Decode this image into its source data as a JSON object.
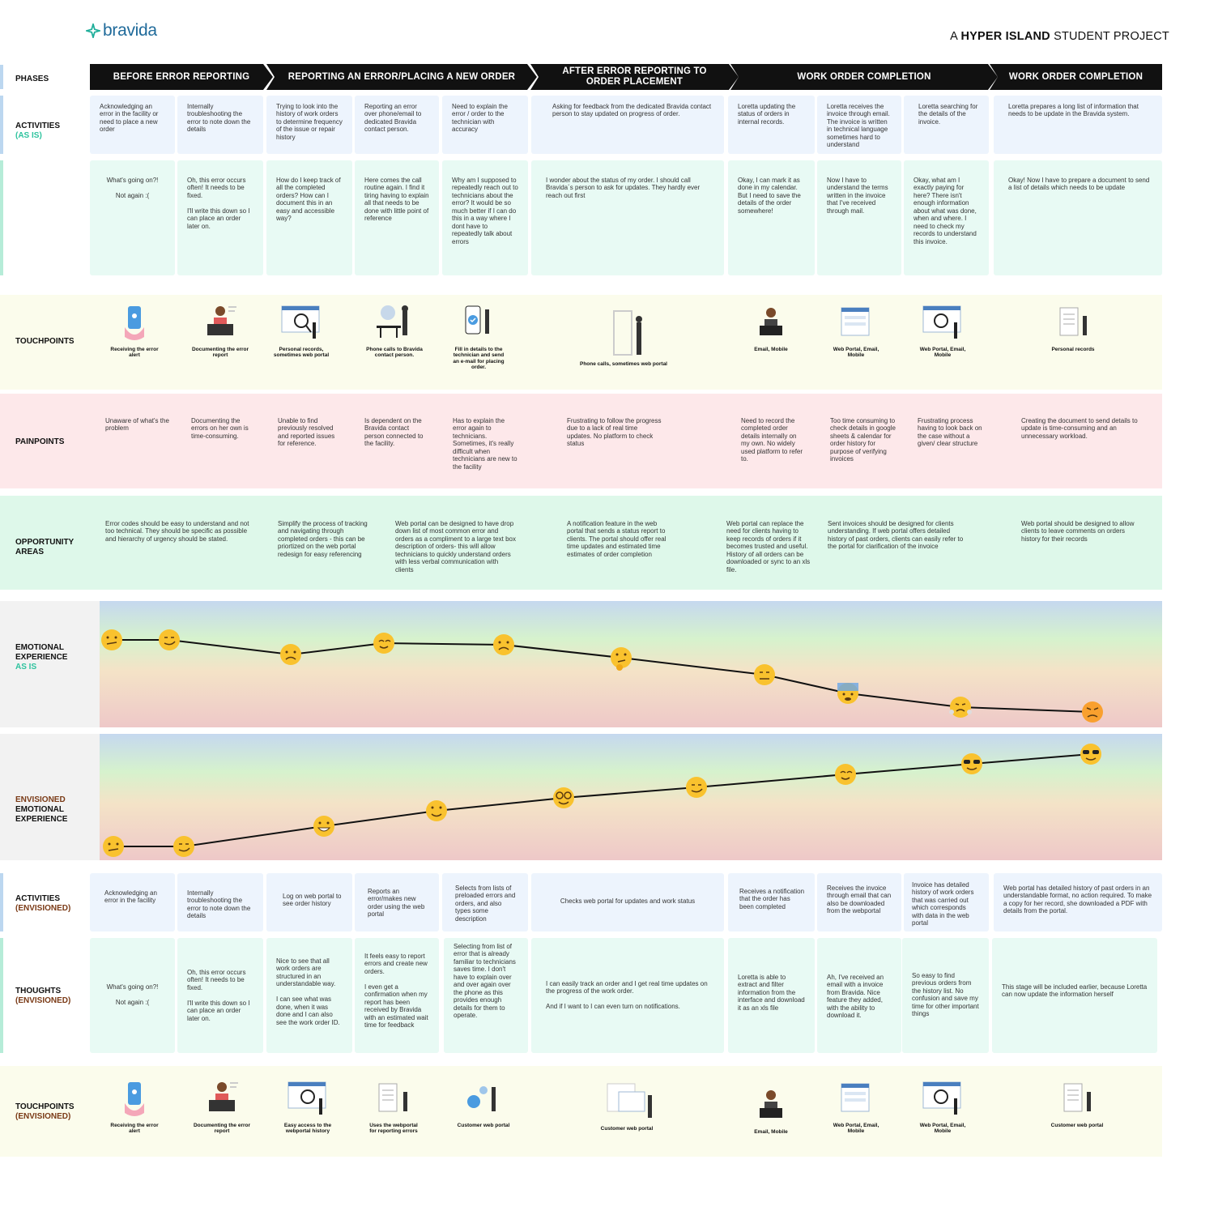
{
  "header": {
    "logo_text": "bravida",
    "project_prefix": "A",
    "project_bold": "HYPER ISLAND",
    "project_suffix": "STUDENT PROJECT"
  },
  "labels": {
    "phases": "PHASES",
    "activities": "ACTIVITIES",
    "activities_sub": "(AS IS)",
    "touchpoints": "TOUCHPOINTS",
    "painpoints": "PAINPOINTS",
    "opportunity": "OPPORTUNITY AREAS",
    "emotional": "EMOTIONAL EXPERIENCE",
    "emotional_sub": "AS IS",
    "envisioned_1": "ENVISIONED",
    "envisioned_2": "EMOTIONAL EXPERIENCE",
    "activities_env": "ACTIVITIES",
    "activities_env_sub": "(ENVISIONED)",
    "thoughts_env": "THOUGHTS",
    "thoughts_env_sub": "(ENVISIONED)",
    "touchpoints_env": "TOUCHPOINTS",
    "touchpoints_env_sub": "(ENVISIONED)"
  },
  "phases": [
    "BEFORE ERROR REPORTING",
    "REPORTING AN ERROR/PLACING A NEW ORDER",
    "AFTER ERROR REPORTING TO ORDER PLACEMENT",
    "WORK ORDER COMPLETION",
    "WORK ORDER COMPLETION"
  ],
  "activities_asis": [
    "Acknowledging an error in the facility or need to place a new order",
    "Internally troubleshooting the error to note down the details",
    "Trying to look into the history of work orders to determine frequency of the issue or repair history",
    "Reporting an error over phone/email to dedicated Bravida contact person.",
    "Need to explain  the error / order to the technician with accuracy",
    "Asking for feedback from the dedicated Bravida contact person to stay updated on progress of order.",
    "Loretta updating the status of orders in internal records.",
    "Loretta receives the invoice through email. The invoice is written in technical language sometimes hard to understand",
    "Loretta searching for the details of the invoice.",
    "Loretta prepares a long list of information that needs to be update in the Bravida system."
  ],
  "thoughts_asis": [
    [
      "What's going on?!",
      "Not again :("
    ],
    [
      "Oh, this error occurs often! It needs to be fixed.",
      "I'll write this down so I can place an order later on."
    ],
    [
      "How do I keep track of all the completed orders? How can I document this in an easy and accessible way?"
    ],
    [
      "Here comes the call routine again. I find it tiring having to explain all that needs to be done with little point of reference"
    ],
    [
      "Why am I supposed to repeatedly reach out to technicians about the error? It would be so much better if I can do this in a way where I dont have to repeatedly talk about errors"
    ],
    [
      "I wonder about the status of my order. I should call Bravida´s person to ask for updates. They hardly ever reach out first"
    ],
    [
      "Okay, I can mark it as done in my calendar. But I need to save the details of the order somewhere!"
    ],
    [
      "Now I have to understand the terms written in the invoice that I've received through mail."
    ],
    [
      "Okay, what am I exactly paying for here? There isn't enough information about what was done, when and where. I need to check my records to understand this invoice."
    ],
    [
      "Okay! Now I have to prepare a document to send a list of details which needs to be update"
    ]
  ],
  "touchpoints_asis": [
    "Receiving the error alert",
    "Documenting the error report",
    "Personal records, sometimes web portal",
    "Phone calls to Bravida contact person.",
    "Fill in details to the technician and send an e-mail for placing order.",
    "Phone calls, sometimes web portal",
    "Email, Mobile",
    "Web Portal, Email, Mobile",
    "Web Portal, Email, Mobile",
    "Personal records"
  ],
  "painpoints": [
    "Unaware of  what's the problem",
    "Documenting the errors on her own is time-consuming.",
    "Unable to find previously resolved and reported issues for reference.",
    "Is dependent on the Bravida contact person connected to the facility.",
    "Has to explain the error again to technicians. Sometimes, it's really difficult when technicians are new to the facility",
    "Frustrating to follow the progress due to a lack of  real time updates. No platform to check status",
    "Need to record the completed order details internally on my own. No widely used platform to refer to.",
    "Too time consuming to check details in google sheets & calendar for order history for purpose of verifying invoices",
    "Frustrating process having to look back on the case without a given/ clear structure",
    "Creating the document to send details to update is time-consuming and an unnecessary workload."
  ],
  "opportunities": [
    "Error codes should be easy to understand and not too technical. They should be specific as possible and hierarchy of urgency should be stated.",
    "Simplify the process of tracking and navigating through completed orders - this can be priortized on the web portal redesign for easy referencing",
    "Web portal can be designed to have drop down list of most common error and orders as a compliment to a large text box description of orders- this will allow technicians to quickly understand orders with less verbal communication with clients",
    "A notification feature in the web portal that sends a status report to clients. The portal should offer real time updates and estimated time estimates of order completion",
    "Web portal can replace the need for clients having to keep records of orders if it becomes trusted and useful. History of all orders can be downloaded or sync to an xls file.",
    "Sent invoices should be designed for clients understanding. If web portal offers detailed history of past orders, clients can easily refer to the portal for clarification of the invoice",
    "Web portal should be designed to allow clients to leave comments on orders history for their records"
  ],
  "activities_env": [
    "Acknowledging an error in the facility",
    "Internally troubleshooting the error to note down the details",
    "Log on web portal to see order history",
    "Reports an error/makes new order using the web portal",
    "Selects from lists of preloaded errors and orders, and also types some description",
    "Checks web portal for updates and work status",
    "Receives a notification that the order has been completed",
    "Receives the invoice through email that can also be downloaded from the webportal",
    "Invoice has detailed history of work orders that was carried out which corresponds with data in the web portal",
    "Web portal has detailed history of past orders in an understandable format, no action required. To make a copy for her record, she downloaded a PDF with details from the portal."
  ],
  "thoughts_env": [
    [
      "What's going on?!",
      "Not again :("
    ],
    [
      "Oh, this error occurs often! It needs to be fixed.",
      "I'll write this down so I can place an order later on."
    ],
    [
      "Nice to see that all work orders are structured in an understandable way.",
      "I can see what was done, when it was done and I can also see the work order ID."
    ],
    [
      "It feels easy to report errors and create new orders.",
      "I even get a confirmation when my report has been received by Bravida with an estimated wait time for feedback"
    ],
    [
      "Selecting from list of error that is already familiar to technicians saves time. I don't have to explain over and over again over the phone as this provides enough details for them to operate."
    ],
    [
      "I can easily track an order and I get real time updates on the progress of the work order.",
      "And if I want to I can even turn on notifications."
    ],
    [
      "Loretta is able to extract and filter information from the interface and download it as an xls file"
    ],
    [
      "Ah, I've received an email with a invoice from Bravida. Nice feature they added, with the ability to download it."
    ],
    [
      "So easy to find previous orders from the history list. No confusion and save my time for other important things"
    ],
    [
      "This stage will be included earlier, because Loretta can now update the information herself"
    ]
  ],
  "touchpoints_env": [
    "Receiving the error alert",
    "Documenting the error report",
    "Easy access to the webportal history",
    "Uses the webportal for reporting errors",
    "Customer web portal",
    "Customer web portal",
    "Email, Mobile",
    "Web Portal, Email, Mobile",
    "Web Portal, Email, Mobile",
    "Customer web portal"
  ],
  "emotional_asis": {
    "levels": [
      0.3,
      0.3,
      0.2,
      0.27,
      0.26,
      0.22,
      0.15,
      0.07,
      0.03,
      0
    ],
    "emojis": [
      "confused",
      "smirk",
      "worried",
      "relieved",
      "sad",
      "thinking",
      "expressionless",
      "anxious-sweat",
      "steaming",
      "angry"
    ]
  },
  "emotional_env": {
    "levels": [
      0.05,
      0.05,
      0.22,
      0.34,
      0.5,
      0.55,
      0.68,
      0.78,
      0.93
    ],
    "emojis": [
      "confused",
      "smirk",
      "grin",
      "smile",
      "nerd",
      "smirk",
      "relieved",
      "cool",
      "cool"
    ]
  },
  "colors": {
    "accent_green": "#2ec39e",
    "accent_brown": "#7a3a16",
    "brand_blue": "#1f6a9a",
    "activity_card": "#edf4fd",
    "thought_card": "#e8faf4",
    "touchpoint_band": "#fbfcec",
    "painpoint_band": "#fde8ea",
    "opportunity_band": "#def8ea"
  }
}
